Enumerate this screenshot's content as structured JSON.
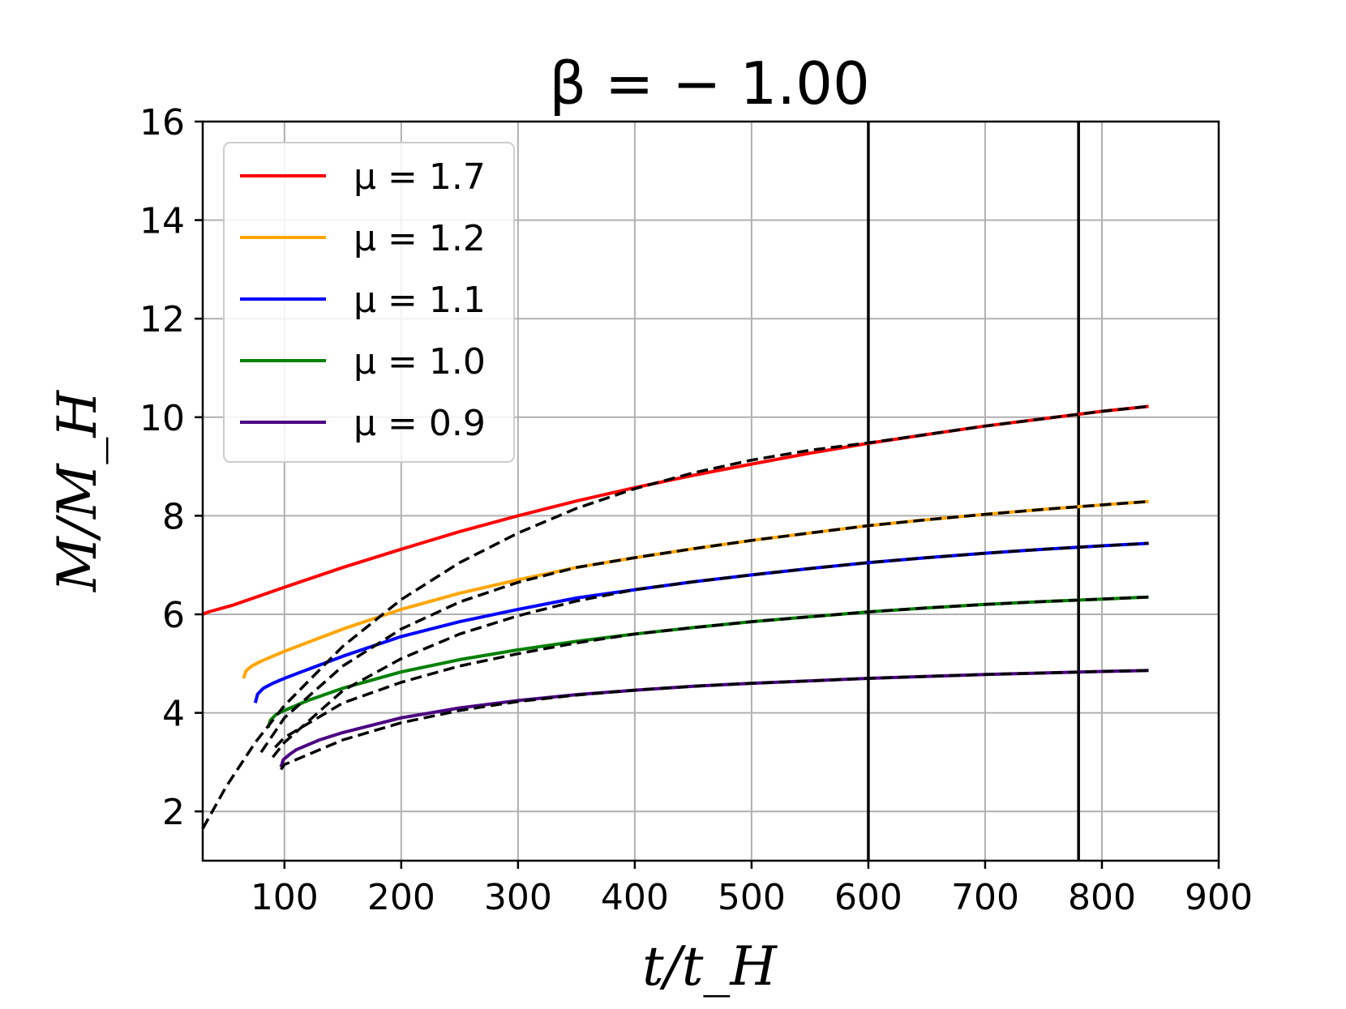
{
  "chart_data": {
    "type": "line",
    "title": "β = − 1.00",
    "xlabel": "t/t_H",
    "ylabel": "M/M_H",
    "xlim": [
      30,
      900
    ],
    "ylim": [
      1,
      16
    ],
    "xticks": [
      100,
      200,
      300,
      400,
      500,
      600,
      700,
      800,
      900
    ],
    "yticks": [
      2,
      4,
      6,
      8,
      10,
      12,
      14,
      16
    ],
    "grid": true,
    "legend_position": "top-left",
    "vertical_lines": [
      600,
      780
    ],
    "series": [
      {
        "name": "μ = 1.7",
        "color": "#ff0000",
        "x": [
          30,
          35,
          55,
          100,
          150,
          200,
          250,
          300,
          350,
          400,
          450,
          500,
          550,
          600,
          650,
          700,
          750,
          800,
          840
        ],
        "y": [
          6.0,
          6.05,
          6.18,
          6.55,
          6.95,
          7.32,
          7.68,
          8.0,
          8.3,
          8.57,
          8.82,
          9.05,
          9.27,
          9.47,
          9.65,
          9.82,
          9.97,
          10.12,
          10.22
        ]
      },
      {
        "name": "μ = 1.2",
        "color": "#ffa500",
        "x": [
          65,
          67,
          72,
          80,
          100,
          150,
          200,
          250,
          300,
          350,
          400,
          450,
          500,
          550,
          600,
          650,
          700,
          750,
          800,
          840
        ],
        "y": [
          4.7,
          4.85,
          4.95,
          5.05,
          5.25,
          5.7,
          6.1,
          6.43,
          6.7,
          6.95,
          7.15,
          7.33,
          7.5,
          7.65,
          7.8,
          7.92,
          8.03,
          8.13,
          8.22,
          8.29
        ]
      },
      {
        "name": "μ = 1.1",
        "color": "#0000ff",
        "x": [
          75,
          77,
          82,
          90,
          100,
          150,
          200,
          250,
          300,
          350,
          400,
          450,
          500,
          550,
          600,
          650,
          700,
          750,
          800,
          840
        ],
        "y": [
          4.2,
          4.38,
          4.5,
          4.6,
          4.7,
          5.15,
          5.55,
          5.85,
          6.1,
          6.33,
          6.5,
          6.66,
          6.8,
          6.93,
          7.05,
          7.15,
          7.24,
          7.32,
          7.39,
          7.44
        ]
      },
      {
        "name": "μ = 1.0",
        "color": "#008000",
        "x": [
          86,
          88,
          93,
          100,
          120,
          150,
          200,
          250,
          300,
          350,
          400,
          450,
          500,
          550,
          600,
          650,
          700,
          750,
          800,
          840
        ],
        "y": [
          3.7,
          3.85,
          3.97,
          4.05,
          4.25,
          4.5,
          4.83,
          5.08,
          5.28,
          5.45,
          5.6,
          5.73,
          5.85,
          5.95,
          6.05,
          6.13,
          6.2,
          6.26,
          6.31,
          6.35
        ]
      },
      {
        "name": "μ = 0.9",
        "color": "#4b0082",
        "x": [
          97,
          99,
          104,
          110,
          130,
          150,
          200,
          250,
          300,
          350,
          400,
          450,
          500,
          550,
          600,
          650,
          700,
          750,
          800,
          840
        ],
        "y": [
          2.9,
          3.05,
          3.15,
          3.25,
          3.45,
          3.6,
          3.9,
          4.1,
          4.25,
          4.37,
          4.46,
          4.54,
          4.6,
          4.65,
          4.7,
          4.74,
          4.78,
          4.81,
          4.84,
          4.86
        ]
      }
    ],
    "fits": [
      {
        "style": "dashed",
        "color": "#000000",
        "x": [
          30,
          50,
          75,
          100,
          150,
          200,
          250,
          300,
          350,
          400,
          450,
          500,
          550,
          600,
          650,
          700,
          750,
          800,
          840
        ],
        "y": [
          1.65,
          2.5,
          3.4,
          4.15,
          5.35,
          6.3,
          7.05,
          7.65,
          8.15,
          8.55,
          8.87,
          9.13,
          9.33,
          9.48,
          9.65,
          9.82,
          9.97,
          10.12,
          10.22
        ]
      },
      {
        "style": "dashed",
        "color": "#000000",
        "x": [
          80,
          100,
          150,
          200,
          250,
          300,
          350,
          400,
          450,
          500,
          550,
          600,
          650,
          700,
          750,
          800,
          840
        ],
        "y": [
          3.2,
          3.9,
          4.95,
          5.7,
          6.25,
          6.65,
          6.95,
          7.15,
          7.33,
          7.5,
          7.65,
          7.8,
          7.92,
          8.03,
          8.13,
          8.22,
          8.29
        ]
      },
      {
        "style": "dashed",
        "color": "#000000",
        "x": [
          90,
          100,
          150,
          200,
          250,
          300,
          350,
          400,
          450,
          500,
          550,
          600,
          650,
          700,
          750,
          800,
          840
        ],
        "y": [
          3.1,
          3.4,
          4.45,
          5.1,
          5.6,
          5.97,
          6.27,
          6.5,
          6.66,
          6.8,
          6.93,
          7.05,
          7.15,
          7.24,
          7.32,
          7.39,
          7.44
        ]
      },
      {
        "style": "dashed",
        "color": "#000000",
        "x": [
          92,
          100,
          150,
          200,
          250,
          300,
          350,
          400,
          450,
          500,
          550,
          600,
          650,
          700,
          750,
          800,
          840
        ],
        "y": [
          3.3,
          3.5,
          4.2,
          4.62,
          4.95,
          5.2,
          5.42,
          5.6,
          5.73,
          5.85,
          5.95,
          6.05,
          6.13,
          6.2,
          6.26,
          6.31,
          6.35
        ]
      },
      {
        "style": "dashed",
        "color": "#000000",
        "x": [
          97,
          100,
          150,
          200,
          250,
          300,
          350,
          400,
          450,
          500,
          550,
          600,
          650,
          700,
          750,
          800,
          840
        ],
        "y": [
          2.85,
          2.95,
          3.45,
          3.8,
          4.05,
          4.23,
          4.36,
          4.46,
          4.54,
          4.6,
          4.65,
          4.7,
          4.74,
          4.78,
          4.81,
          4.84,
          4.86
        ]
      }
    ]
  }
}
